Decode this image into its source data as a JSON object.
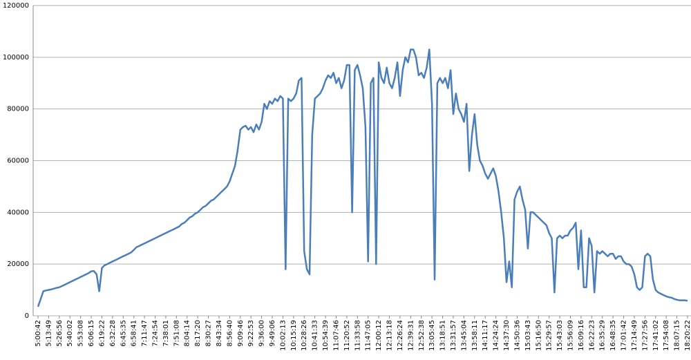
{
  "chart_data": {
    "type": "line",
    "categories": [
      "5:00:42",
      null,
      null,
      null,
      "5:13:49",
      null,
      null,
      null,
      "5:26:56",
      null,
      null,
      null,
      "5:40:02",
      null,
      null,
      null,
      "5:53:08",
      null,
      null,
      null,
      "6:06:15",
      null,
      null,
      null,
      "6:19:22",
      null,
      null,
      null,
      "6:32:28",
      null,
      null,
      null,
      "6:45:35",
      null,
      null,
      null,
      "6:58:41",
      null,
      null,
      null,
      "7:11:47",
      null,
      null,
      null,
      "7:24:54",
      null,
      null,
      null,
      "7:38:01",
      null,
      null,
      null,
      "7:51:08",
      null,
      null,
      null,
      "8:04:14",
      null,
      null,
      null,
      "8:17:20",
      null,
      null,
      null,
      "8:30:27",
      null,
      null,
      null,
      "8:43:34",
      null,
      null,
      null,
      "8:56:40",
      null,
      null,
      null,
      "9:09:46",
      null,
      null,
      null,
      "9:22:53",
      null,
      null,
      null,
      "9:36:00",
      null,
      null,
      null,
      "9:49:06",
      null,
      null,
      null,
      "10:02:13",
      null,
      null,
      null,
      "10:15:19",
      null,
      null,
      null,
      "10:28:26",
      null,
      null,
      null,
      "10:41:33",
      null,
      null,
      null,
      "10:54:39",
      null,
      null,
      null,
      "11:07:46",
      null,
      null,
      null,
      "11:20:52",
      null,
      null,
      null,
      "11:33:58",
      null,
      null,
      null,
      "11:47:05",
      null,
      null,
      null,
      "12:00:12",
      null,
      null,
      null,
      "12:13:18",
      null,
      null,
      null,
      "12:26:24",
      null,
      null,
      null,
      "12:39:31",
      null,
      null,
      null,
      "12:52:38",
      null,
      null,
      null,
      "13:05:45",
      null,
      null,
      null,
      "13:18:51",
      null,
      null,
      null,
      "13:31:57",
      null,
      null,
      null,
      "13:45:04",
      null,
      null,
      null,
      "13:58:11",
      null,
      null,
      null,
      "14:11:17",
      null,
      null,
      null,
      "14:24:24",
      null,
      null,
      null,
      "14:37:30",
      null,
      null,
      null,
      "14:50:36",
      null,
      null,
      null,
      "15:03:43",
      null,
      null,
      null,
      "15:16:50",
      null,
      null,
      null,
      "15:29:57",
      null,
      null,
      null,
      "15:43:03",
      null,
      null,
      null,
      "15:56:09",
      null,
      null,
      null,
      "16:09:16",
      null,
      null,
      null,
      "16:22:23",
      null,
      null,
      null,
      "16:35:29",
      null,
      null,
      null,
      "16:48:35",
      null,
      null,
      null,
      "17:01:42",
      null,
      null,
      null,
      "17:14:49",
      null,
      null,
      null,
      "17:27:56",
      null,
      null,
      null,
      "17:41:02",
      null,
      null,
      null,
      "17:54:08",
      null,
      null,
      null,
      "18:07:15",
      null,
      null,
      null,
      "18:20:22"
    ],
    "series": [
      {
        "color": "#4a7ebb",
        "values": [
          3500,
          6500,
          9500,
          9800,
          10000,
          10200,
          10500,
          10800,
          11000,
          11500,
          12000,
          12500,
          13000,
          13500,
          14000,
          14500,
          15000,
          15500,
          16000,
          16500,
          17200,
          17300,
          16000,
          9500,
          18500,
          19500,
          20000,
          20500,
          21000,
          21500,
          22000,
          22500,
          23000,
          23500,
          24000,
          24500,
          25500,
          26500,
          27000,
          27500,
          28000,
          28500,
          29000,
          29500,
          30000,
          30500,
          31000,
          31500,
          32000,
          32500,
          33000,
          33500,
          34000,
          34500,
          35500,
          36000,
          37000,
          38000,
          38500,
          39500,
          40000,
          41000,
          42000,
          42500,
          43500,
          44500,
          45000,
          46000,
          47000,
          48000,
          49000,
          50000,
          52000,
          55000,
          58000,
          64000,
          72000,
          73000,
          73500,
          72000,
          73000,
          71000,
          74000,
          72000,
          75000,
          82000,
          80000,
          83000,
          82000,
          84000,
          83000,
          85000,
          84000,
          18000,
          84000,
          83000,
          84000,
          86000,
          91000,
          92000,
          25000,
          18000,
          16000,
          70000,
          84000,
          85000,
          86000,
          88000,
          91000,
          93000,
          92000,
          94000,
          90000,
          92000,
          88000,
          91000,
          97000,
          97000,
          40000,
          95000,
          97000,
          93000,
          88000,
          73000,
          21000,
          90000,
          92000,
          20000,
          98000,
          92000,
          90000,
          96000,
          90000,
          88000,
          92000,
          98000,
          85000,
          95000,
          100000,
          98000,
          103000,
          103000,
          100000,
          93000,
          94000,
          92000,
          96000,
          103000,
          82000,
          14000,
          90000,
          92000,
          90000,
          92000,
          88000,
          95000,
          78000,
          86000,
          80000,
          78000,
          75000,
          82000,
          56000,
          70000,
          78000,
          66000,
          60000,
          58000,
          55000,
          53000,
          55000,
          57000,
          54000,
          48000,
          40000,
          30000,
          13000,
          21000,
          11000,
          45000,
          48000,
          50000,
          45000,
          41000,
          26000,
          40000,
          40000,
          39000,
          38000,
          37000,
          36000,
          35000,
          32000,
          30000,
          9000,
          30000,
          31000,
          30000,
          31000,
          31000,
          33000,
          34000,
          36000,
          18000,
          33000,
          11000,
          11000,
          30000,
          27000,
          9000,
          25000,
          24000,
          25000,
          24000,
          23000,
          24000,
          24000,
          22000,
          23000,
          23000,
          21000,
          20000,
          20000,
          19000,
          16000,
          11000,
          10000,
          11000,
          23000,
          24000,
          23000,
          14000,
          10000,
          9000,
          8500,
          8000,
          7500,
          7200,
          7000,
          6500,
          6200,
          6000,
          6000,
          6000,
          5800
        ]
      }
    ],
    "ylim": [
      0,
      120000
    ],
    "yticks": [
      0,
      20000,
      40000,
      60000,
      80000,
      100000,
      120000
    ],
    "grid": true
  }
}
